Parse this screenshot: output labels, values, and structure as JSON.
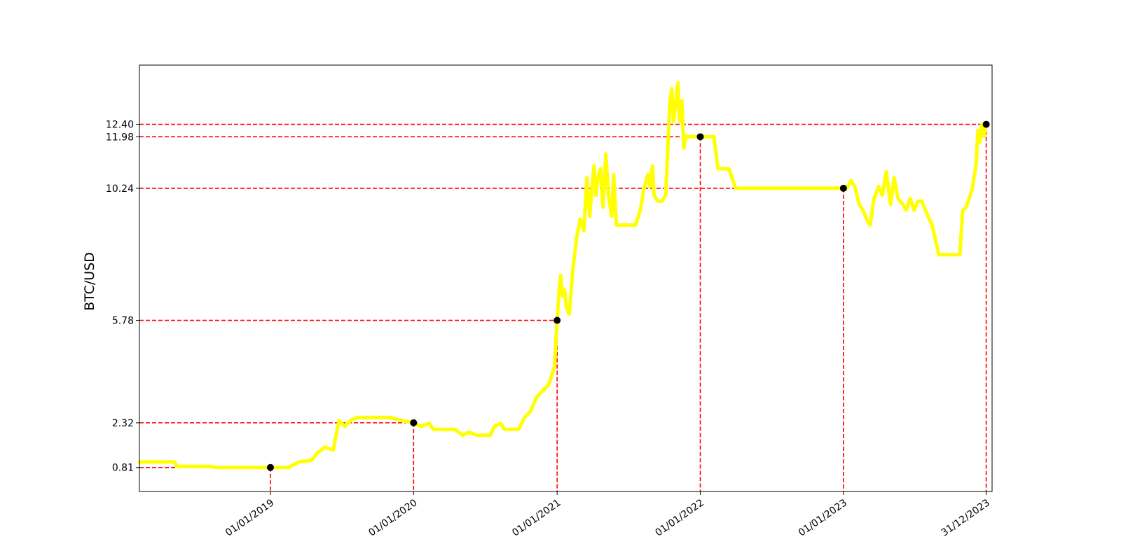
{
  "chart_data": {
    "type": "line",
    "title": "",
    "xlabel": "",
    "ylabel": "BTC/USD",
    "x_range": [
      "2018-02-01",
      "2024-01-15"
    ],
    "ylim": [
      0.0,
      14.4
    ],
    "grid": false,
    "legend": "none",
    "line_color": "#ffff00",
    "marker_color": "#000000",
    "reference_line_color": "#ff0000",
    "x_ticks": [
      {
        "date": "2019-01-01",
        "label": "01/01/2019"
      },
      {
        "date": "2020-01-01",
        "label": "01/01/2020"
      },
      {
        "date": "2021-01-01",
        "label": "01/01/2021"
      },
      {
        "date": "2022-01-01",
        "label": "01/01/2022"
      },
      {
        "date": "2023-01-01",
        "label": "01/01/2023"
      },
      {
        "date": "2023-12-31",
        "label": "31/12/2023"
      }
    ],
    "y_ticks": [
      {
        "value": 0.81,
        "label": "0.81"
      },
      {
        "value": 2.32,
        "label": "2.32"
      },
      {
        "value": 5.78,
        "label": "5.78"
      },
      {
        "value": 10.24,
        "label": "10.24"
      },
      {
        "value": 11.98,
        "label": "11.98"
      },
      {
        "value": 12.4,
        "label": "12.40"
      }
    ],
    "highlighted_points": [
      {
        "date": "2019-01-01",
        "value": 0.81
      },
      {
        "date": "2020-01-01",
        "value": 2.32
      },
      {
        "date": "2021-01-01",
        "value": 5.78
      },
      {
        "date": "2022-01-01",
        "value": 11.98
      },
      {
        "date": "2023-01-01",
        "value": 10.24
      },
      {
        "date": "2023-12-31",
        "value": 12.4
      }
    ],
    "series": [
      {
        "x": [
          "2018-02-01",
          "2018-05-01",
          "2018-05-08",
          "2018-08-01",
          "2018-08-15",
          "2019-01-01",
          "2019-02-15",
          "2019-03-01",
          "2019-03-15",
          "2019-04-15",
          "2019-05-01",
          "2019-05-20",
          "2019-06-10",
          "2019-06-25",
          "2019-07-10",
          "2019-07-25",
          "2019-08-10",
          "2019-09-01",
          "2019-10-01",
          "2019-11-01",
          "2019-12-01",
          "2020-01-01",
          "2020-01-20",
          "2020-02-10",
          "2020-02-20",
          "2020-03-10",
          "2020-04-15",
          "2020-05-05",
          "2020-05-20",
          "2020-06-10",
          "2020-06-20",
          "2020-07-15",
          "2020-07-25",
          "2020-08-10",
          "2020-08-20",
          "2020-09-10",
          "2020-09-25",
          "2020-10-10",
          "2020-10-25",
          "2020-11-10",
          "2020-11-25",
          "2020-12-10",
          "2020-12-25",
          "2021-01-01",
          "2021-01-06",
          "2021-01-10",
          "2021-01-15",
          "2021-01-20",
          "2021-01-25",
          "2021-02-01",
          "2021-02-10",
          "2021-02-20",
          "2021-03-01",
          "2021-03-10",
          "2021-03-18",
          "2021-03-25",
          "2021-04-05",
          "2021-04-10",
          "2021-04-15",
          "2021-04-22",
          "2021-04-28",
          "2021-05-05",
          "2021-05-12",
          "2021-05-20",
          "2021-05-25",
          "2021-06-01",
          "2021-06-05",
          "2021-06-10",
          "2021-06-15",
          "2021-06-20",
          "2021-06-25",
          "2021-07-01",
          "2021-07-20",
          "2021-08-01",
          "2021-08-10",
          "2021-08-20",
          "2021-08-25",
          "2021-09-01",
          "2021-09-05",
          "2021-09-15",
          "2021-09-25",
          "2021-10-05",
          "2021-10-10",
          "2021-10-15",
          "2021-10-20",
          "2021-10-25",
          "2021-11-01",
          "2021-11-05",
          "2021-11-08",
          "2021-11-10",
          "2021-11-15",
          "2021-11-20",
          "2021-11-25",
          "2021-12-01",
          "2021-12-05",
          "2021-12-10",
          "2021-12-15",
          "2021-12-20",
          "2022-01-01",
          "2022-02-05",
          "2022-02-15",
          "2022-03-05",
          "2022-03-15",
          "2022-04-01",
          "2022-06-01",
          "2022-08-01",
          "2022-10-01",
          "2022-12-01",
          "2023-01-01",
          "2023-01-10",
          "2023-01-20",
          "2023-01-30",
          "2023-02-10",
          "2023-02-20",
          "2023-03-01",
          "2023-03-10",
          "2023-03-20",
          "2023-04-01",
          "2023-04-10",
          "2023-04-20",
          "2023-05-01",
          "2023-05-10",
          "2023-05-20",
          "2023-06-01",
          "2023-06-10",
          "2023-06-20",
          "2023-06-30",
          "2023-07-10",
          "2023-07-20",
          "2023-08-01",
          "2023-08-15",
          "2023-09-01",
          "2023-10-01",
          "2023-10-20",
          "2023-10-25",
          "2023-11-01",
          "2023-11-10",
          "2023-11-20",
          "2023-11-25",
          "2023-12-01",
          "2023-12-05",
          "2023-12-10",
          "2023-12-15",
          "2023-12-20",
          "2023-12-25",
          "2023-12-31"
        ],
        "values": [
          1.0,
          1.0,
          0.85,
          0.85,
          0.81,
          0.81,
          0.81,
          0.9,
          1.0,
          1.05,
          1.3,
          1.5,
          1.4,
          2.4,
          2.2,
          2.4,
          2.5,
          2.5,
          2.5,
          2.5,
          2.4,
          2.32,
          2.2,
          2.3,
          2.1,
          2.1,
          2.1,
          1.9,
          2.0,
          1.9,
          1.9,
          1.9,
          2.2,
          2.3,
          2.1,
          2.1,
          2.1,
          2.5,
          2.7,
          3.2,
          3.4,
          3.6,
          4.2,
          5.78,
          6.8,
          7.3,
          6.6,
          6.8,
          6.2,
          6.0,
          7.5,
          8.6,
          9.2,
          8.8,
          10.6,
          9.3,
          11.0,
          10.0,
          10.6,
          10.9,
          9.6,
          11.4,
          10.0,
          9.3,
          10.7,
          9.0,
          9.0,
          9.0,
          9.0,
          9.0,
          9.0,
          9.0,
          9.0,
          9.5,
          10.2,
          10.7,
          10.3,
          11.0,
          10.0,
          9.8,
          9.8,
          10.0,
          11.5,
          13.0,
          13.6,
          12.5,
          13.4,
          13.8,
          12.8,
          12.5,
          13.2,
          11.6,
          12.0,
          11.98,
          11.98,
          11.98,
          11.98,
          11.98,
          11.98,
          11.98,
          10.9,
          10.9,
          10.9,
          10.24,
          10.24,
          10.24,
          10.24,
          10.24,
          10.24,
          10.24,
          10.5,
          10.3,
          9.7,
          9.5,
          9.2,
          9.0,
          9.9,
          10.3,
          10.0,
          10.8,
          9.7,
          10.6,
          9.9,
          9.7,
          9.5,
          9.9,
          9.5,
          9.8,
          9.8,
          9.4,
          9.0,
          8.0,
          8.0,
          8.0,
          8.0,
          9.5,
          9.6,
          10.0,
          10.2,
          10.7,
          11.0,
          12.2,
          11.8,
          12.4,
          12.0,
          12.4
        ]
      }
    ]
  }
}
